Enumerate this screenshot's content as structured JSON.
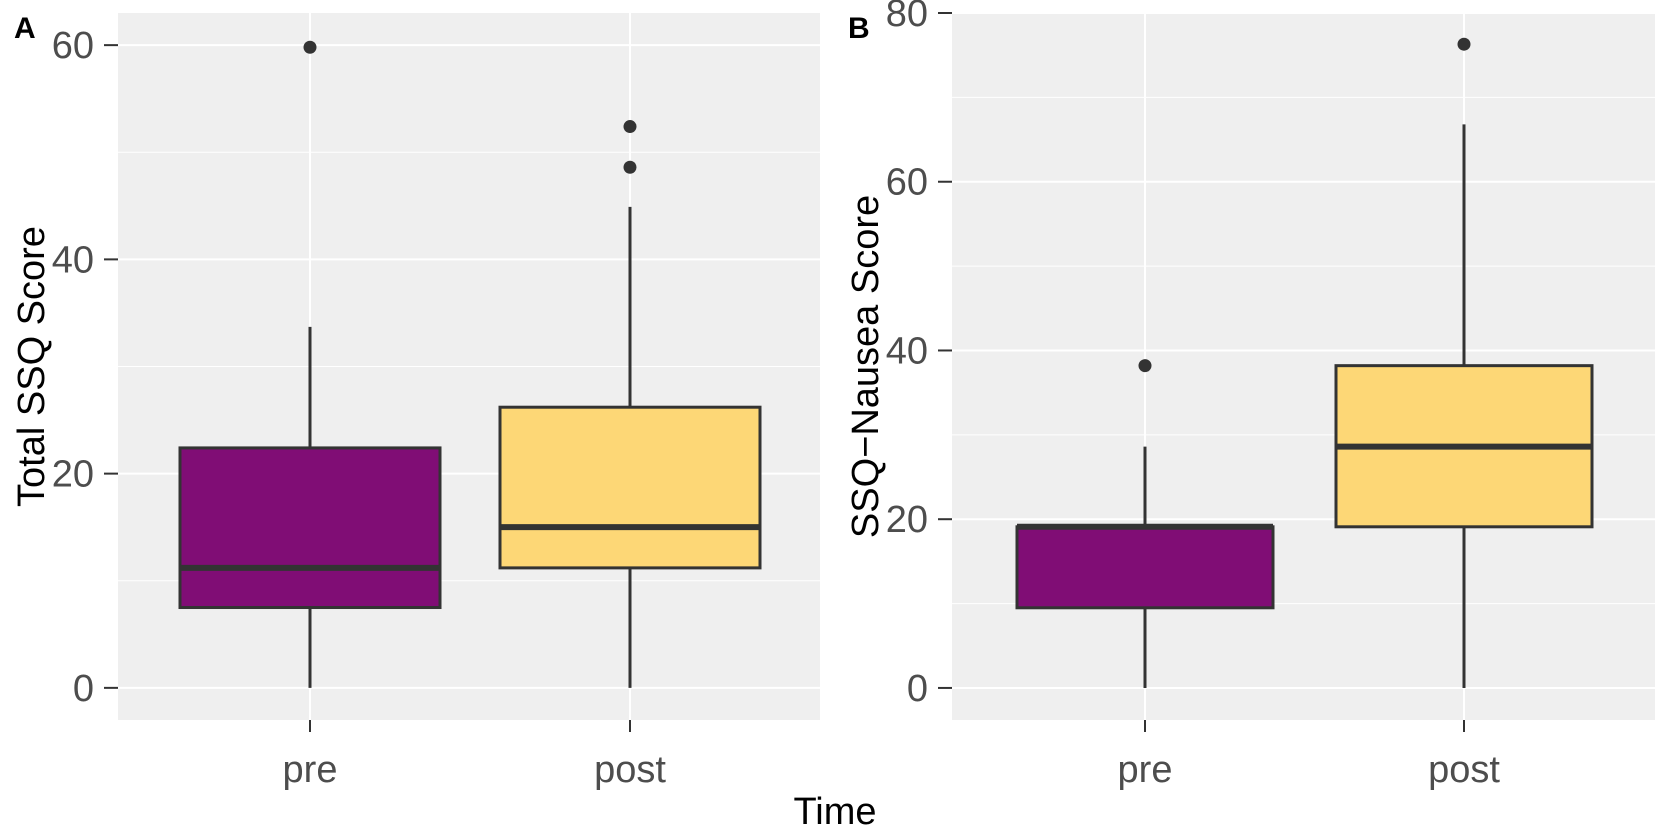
{
  "figure": {
    "shared_xlabel": "Time"
  },
  "chart_data": [
    {
      "type": "boxplot",
      "panel_label": "A",
      "title": "",
      "xlabel": "",
      "ylabel": "Total SSQ Score",
      "ylim": [
        -3,
        63
      ],
      "yticks": [
        0,
        20,
        40,
        60
      ],
      "ytick_labels": [
        "0",
        "20",
        "40",
        "60"
      ],
      "yminor": [
        10,
        30,
        50
      ],
      "grid": true,
      "categories": [
        "pre",
        "post"
      ],
      "fill_colors": [
        "#800d75",
        "#fdd776"
      ],
      "boxes": [
        {
          "category": "pre",
          "whisker_low": 0,
          "q1": 7.5,
          "median": 11.2,
          "q3": 22.4,
          "whisker_high": 33.7,
          "outliers": [
            59.8
          ]
        },
        {
          "category": "post",
          "whisker_low": 0,
          "q1": 11.2,
          "median": 15,
          "q3": 26.2,
          "whisker_high": 44.9,
          "outliers": [
            48.6,
            52.4
          ]
        }
      ]
    },
    {
      "type": "boxplot",
      "panel_label": "B",
      "title": "",
      "xlabel": "",
      "ylabel": "SSQ−Nausea Score",
      "ylim": [
        -3.8,
        80
      ],
      "yticks": [
        0,
        20,
        40,
        60,
        80
      ],
      "ytick_labels": [
        "0",
        "20",
        "40",
        "60",
        "80"
      ],
      "yminor": [
        10,
        30,
        50,
        70
      ],
      "grid": true,
      "categories": [
        "pre",
        "post"
      ],
      "fill_colors": [
        "#800d75",
        "#fdd776"
      ],
      "boxes": [
        {
          "category": "pre",
          "whisker_low": 0,
          "q1": 9.5,
          "median": 19.1,
          "q3": 19.1,
          "whisker_high": 28.6,
          "outliers": [
            38.2
          ]
        },
        {
          "category": "post",
          "whisker_low": 0,
          "q1": 19.1,
          "median": 28.6,
          "q3": 38.2,
          "whisker_high": 66.8,
          "outliers": [
            76.3
          ]
        }
      ]
    }
  ]
}
